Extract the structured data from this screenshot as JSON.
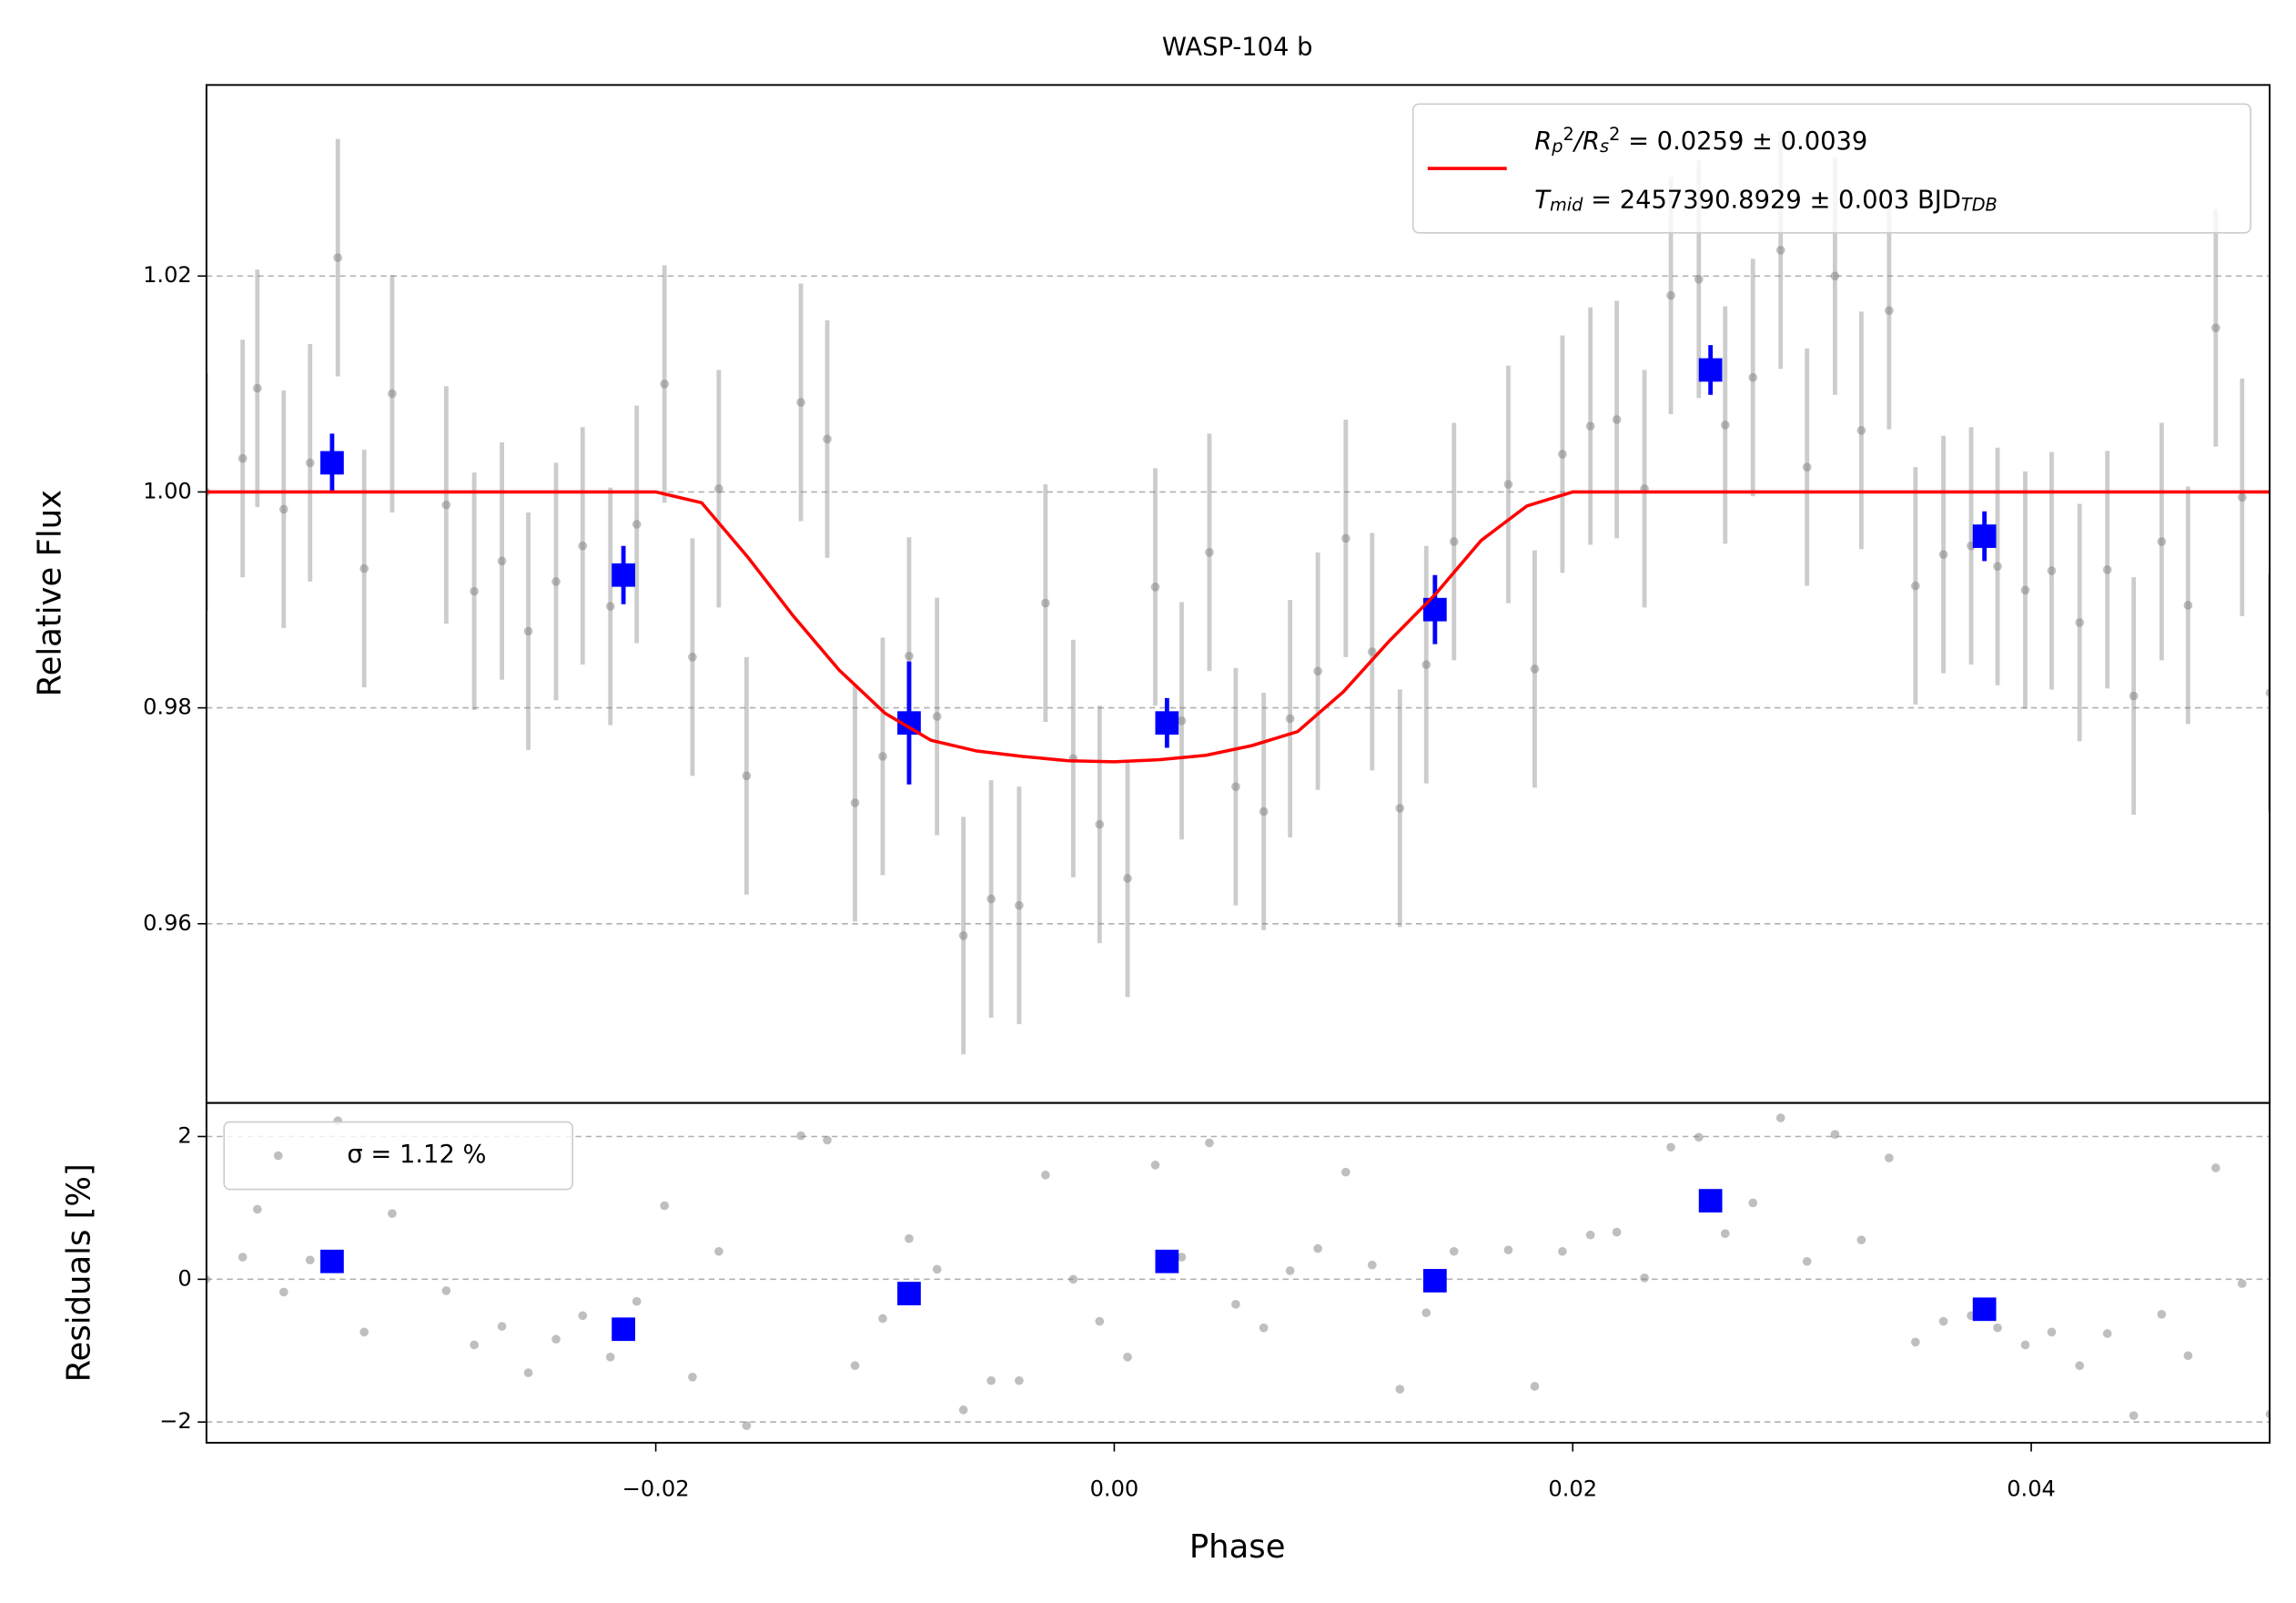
{
  "chart_data": [
    {
      "type": "scatter",
      "title": "WASP-104 b",
      "ylabel": "Relative Flux",
      "xlim": [
        -0.0396,
        0.0504
      ],
      "ylim": [
        0.9434,
        1.0377
      ],
      "yticks": [
        0.96,
        0.98,
        {
          "value": 1.0,
          "label": "1.00"
        },
        1.02
      ],
      "grid": true,
      "legend_loc": "upper right",
      "series": [
        {
          "type": "errorbar",
          "color": "#808080",
          "x": [
            -0.03962,
            -0.03802,
            -0.03738,
            -0.03623,
            -0.03508,
            -0.03387,
            -0.03272,
            -0.0315,
            -0.02914,
            -0.02792,
            -0.02671,
            -0.02556,
            -0.02435,
            -0.02319,
            -0.02198,
            -0.02083,
            -0.01962,
            -0.0184,
            -0.01725,
            -0.01604,
            -0.01367,
            -0.01252,
            -0.01131,
            -0.0101,
            -0.00895,
            -0.00773,
            -0.00658,
            -0.00537,
            -0.00415,
            -0.003,
            -0.00179,
            -0.00064,
            0.00058,
            0.00179,
            0.00294,
            0.00415,
            0.0053,
            0.00652,
            0.00767,
            0.00888,
            0.0101,
            0.01125,
            0.01246,
            0.01361,
            0.01482,
            0.01719,
            0.01834,
            0.01955,
            0.02077,
            0.02192,
            0.02313,
            0.02428,
            0.0255,
            0.02665,
            0.02786,
            0.02907,
            0.03022,
            0.03144,
            0.03259,
            0.0338,
            0.03495,
            0.03617,
            0.03738,
            0.03853,
            0.03974,
            0.04089,
            0.04211,
            0.04332,
            0.04447,
            0.04569,
            0.04684,
            0.04805,
            0.0492,
            0.05042
          ],
          "values": [
            1.0,
            1.0031,
            1.0096,
            0.9984,
            1.0027,
            1.0217,
            0.9929,
            1.0091,
            0.9988,
            0.9908,
            0.9936,
            0.9871,
            0.9917,
            0.995,
            0.9894,
            0.997,
            1.01,
            0.9847,
            1.0003,
            0.9737,
            1.0083,
            1.0049,
            0.9712,
            0.9755,
            0.9848,
            0.9792,
            0.9589,
            0.9623,
            0.9617,
            0.9897,
            0.9753,
            0.9692,
            0.9642,
            0.9912,
            0.9788,
            0.9944,
            0.9727,
            0.9704,
            0.979,
            0.9834,
            0.9957,
            0.9852,
            0.9707,
            0.984,
            0.9954,
            1.0007,
            0.9836,
            1.0035,
            1.0061,
            1.0067,
            1.0003,
            1.0182,
            1.0197,
            1.0062,
            1.0106,
            1.0224,
            1.0023,
            1.02,
            1.0057,
            1.0168,
            0.9913,
            0.9942,
            0.995,
            0.9931,
            0.9909,
            0.9927,
            0.9879,
            0.9928,
            0.9811,
            0.9954,
            0.9895,
            1.0152,
            0.9995,
            0.9814
          ],
          "yerr": 0.011
        },
        {
          "type": "errorbar",
          "color": "#0000ff",
          "marker": "square",
          "x": [
            -0.03412,
            -0.02141,
            -0.00895,
            0.0023,
            0.01399,
            0.02601,
            0.03796
          ],
          "values": [
            1.0027,
            0.9923,
            0.9786,
            0.9786,
            0.9891,
            1.0113,
            0.9959
          ],
          "yerr": [
            0.0027,
            0.0027,
            0.0057,
            0.0023,
            0.0032,
            0.0023,
            0.0023
          ]
        },
        {
          "type": "line",
          "color": "#ff0000",
          "name": [
            [
              {
                "text": "R"
              },
              {
                "text": "p",
                "shift": "sub"
              },
              {
                "text": "2",
                "shift": "super"
              },
              {
                "text": "/R"
              },
              {
                "text": "s",
                "shift": "sub"
              },
              {
                "text": "2",
                "shift": "super"
              },
              {
                "text": " = 0.0259 ± 0.0039"
              }
            ],
            [
              {
                "text": "T"
              },
              {
                "text": "mid",
                "shift": "sub"
              },
              {
                "text": " = 2457390.8929 ± 0.003 BJD"
              },
              {
                "text": "TDB",
                "shift": "sub"
              }
            ]
          ],
          "x": [
            -0.0396,
            -0.02,
            -0.018,
            -0.016,
            -0.014,
            -0.012,
            -0.01,
            -0.008,
            -0.006,
            -0.004,
            -0.002,
            0,
            0.002,
            0.004,
            0.006,
            0.008,
            0.01,
            0.012,
            0.014,
            0.016,
            0.018,
            0.02,
            0.0504
          ],
          "values": [
            1.0,
            1.0,
            0.999,
            0.994,
            0.9885,
            0.9835,
            0.9795,
            0.977,
            0.976,
            0.9755,
            0.9751,
            0.975,
            0.9752,
            0.9756,
            0.9765,
            0.9778,
            0.9815,
            0.9862,
            0.9905,
            0.9955,
            0.9987,
            1.0,
            1.0
          ]
        }
      ]
    },
    {
      "type": "scatter",
      "xlabel": "Phase",
      "ylabel": "Residuals [%]",
      "xlim": [
        -0.0396,
        0.0504
      ],
      "ylim": [
        -2.29,
        2.47
      ],
      "xticks": [
        {
          "value": -0.02,
          "label": "−0.02"
        },
        {
          "value": 0.0,
          "label": "0.00"
        },
        {
          "value": 0.02,
          "label": "0.02"
        },
        {
          "value": 0.04,
          "label": "0.04"
        }
      ],
      "yticks": [
        {
          "value": -2,
          "label": "−2"
        },
        0,
        2
      ],
      "grid": true,
      "legend_loc": "upper left",
      "series": [
        {
          "name": "σ = 1.12 %",
          "color": "#808080",
          "x": [
            -0.03962,
            -0.03802,
            -0.03738,
            -0.03623,
            -0.03508,
            -0.03387,
            -0.03272,
            -0.0315,
            -0.02914,
            -0.02792,
            -0.02671,
            -0.02556,
            -0.02435,
            -0.02319,
            -0.02198,
            -0.02083,
            -0.01962,
            -0.0184,
            -0.01725,
            -0.01604,
            -0.01367,
            -0.01252,
            -0.01131,
            -0.0101,
            -0.00895,
            -0.00773,
            -0.00658,
            -0.00537,
            -0.00415,
            -0.003,
            -0.00179,
            -0.00064,
            0.00058,
            0.00179,
            0.00294,
            0.00415,
            0.0053,
            0.00652,
            0.00767,
            0.00888,
            0.0101,
            0.01125,
            0.01246,
            0.01361,
            0.01482,
            0.01719,
            0.01834,
            0.01955,
            0.02077,
            0.02192,
            0.02313,
            0.02428,
            0.0255,
            0.02665,
            0.02786,
            0.02907,
            0.03022,
            0.03144,
            0.03259,
            0.0338,
            0.03495,
            0.03617,
            0.03738,
            0.03853,
            0.03974,
            0.04089,
            0.04211,
            0.04332,
            0.04447,
            0.04569,
            0.04684,
            0.04805,
            0.0492,
            0.05042
          ],
          "values": [
            0,
            0.31,
            0.98,
            -0.18,
            0.27,
            2.22,
            -0.74,
            0.92,
            -0.16,
            -0.92,
            -0.66,
            -1.31,
            -0.84,
            -0.51,
            -1.09,
            -0.31,
            1.03,
            -1.37,
            0.39,
            -2.05,
            2.01,
            1.95,
            -1.21,
            -0.55,
            0.57,
            0.14,
            -1.83,
            -1.42,
            -1.42,
            1.46,
            0,
            -0.59,
            -1.09,
            1.6,
            0.31,
            1.91,
            -0.35,
            -0.68,
            0.12,
            0.43,
            1.5,
            0.2,
            -1.54,
            -0.47,
            0.39,
            0.41,
            -1.5,
            0.39,
            0.62,
            0.66,
            0.02,
            1.85,
            1.99,
            0.64,
            1.07,
            2.26,
            0.25,
            2.03,
            0.55,
            1.7,
            -0.88,
            -0.59,
            -0.51,
            -0.68,
            -0.92,
            -0.74,
            -1.21,
            -0.76,
            -1.91,
            -0.49,
            -1.07,
            1.56,
            -0.06,
            -1.89
          ]
        },
        {
          "color": "#0000ff",
          "marker": "square",
          "x": [
            -0.03412,
            -0.02141,
            -0.00895,
            0.0023,
            0.01399,
            0.02601,
            0.03796
          ],
          "values": [
            0.25,
            -0.7,
            -0.2,
            0.25,
            -0.02,
            1.1,
            -0.42
          ]
        }
      ]
    }
  ]
}
